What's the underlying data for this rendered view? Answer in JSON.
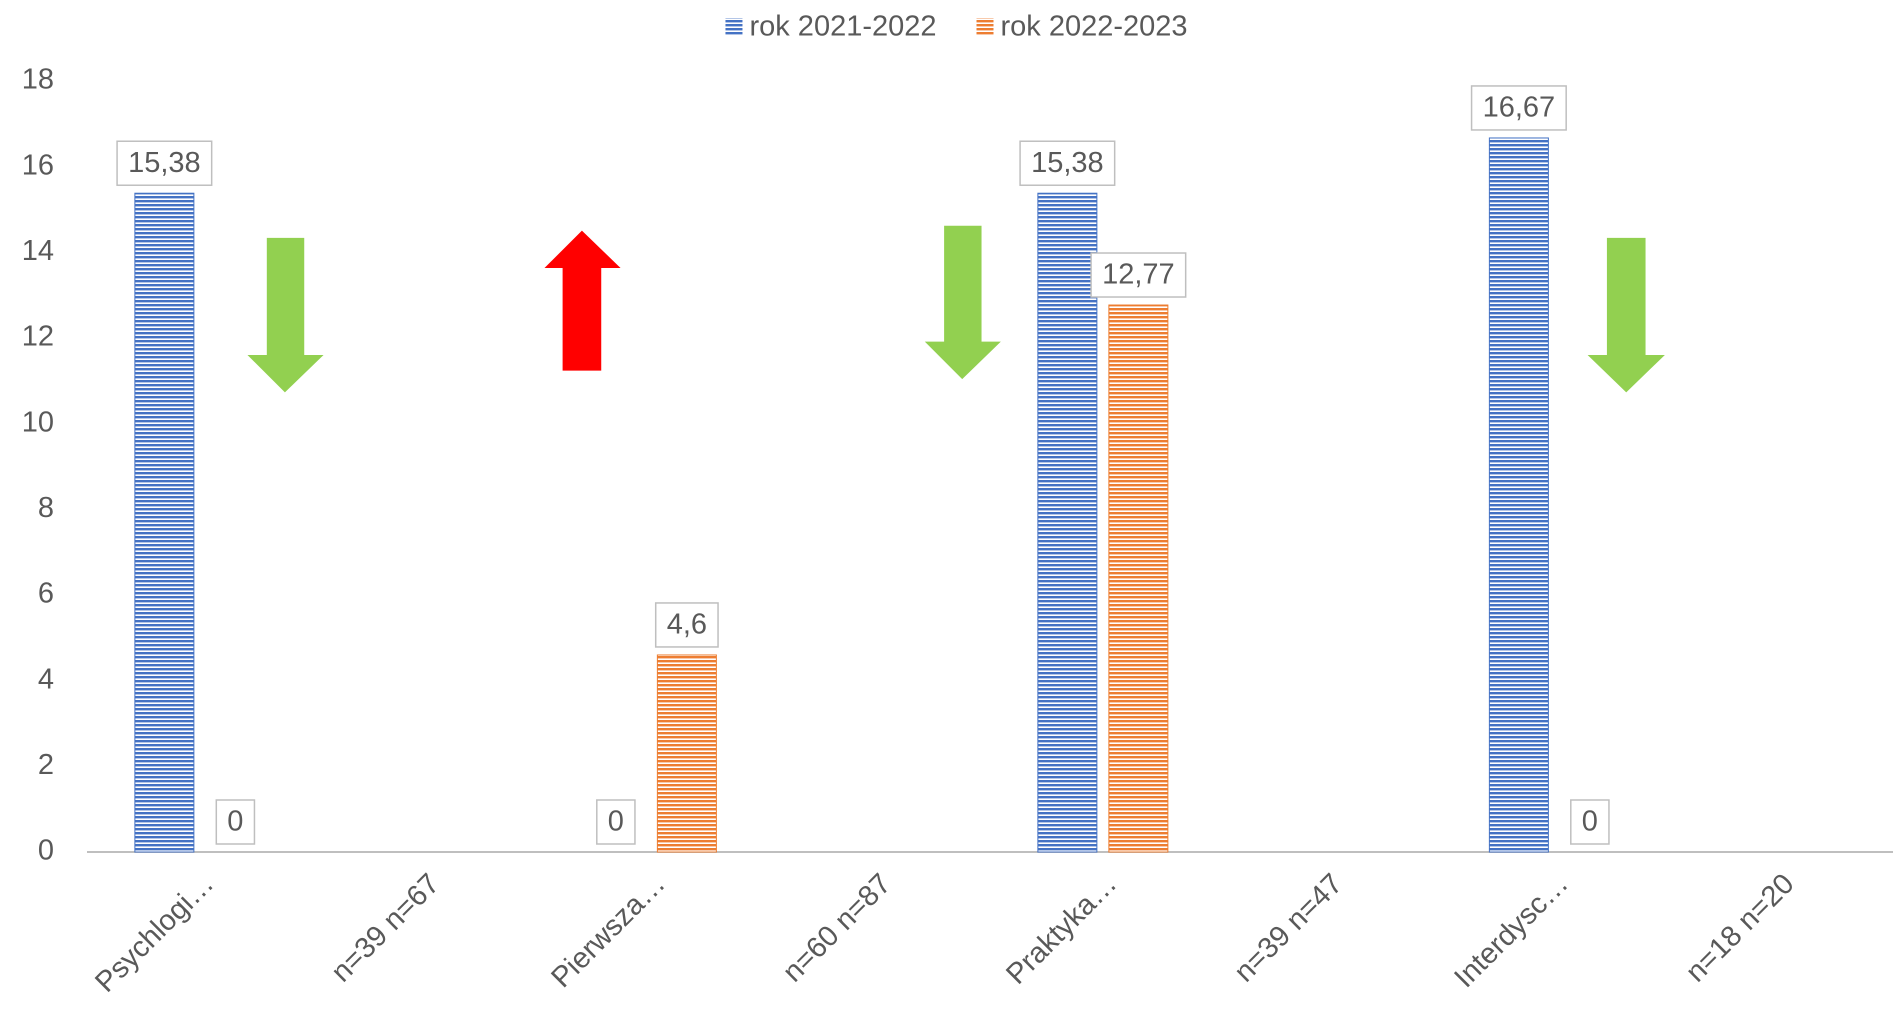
{
  "chart_data": {
    "type": "bar",
    "categories": [
      "Psychlogi…",
      "n=39 n=67",
      "Pierwsza…",
      "n=60 n=87",
      "Praktyka…",
      "n=39 n=47",
      "Interdysc…",
      "n=18 n=20"
    ],
    "series": [
      {
        "name": "rok 2021-2022",
        "color": "#4472c4",
        "values": [
          15.38,
          null,
          0,
          null,
          15.38,
          null,
          16.67,
          null
        ],
        "value_labels": [
          "15,38",
          null,
          "0",
          null,
          "15,38",
          null,
          "16,67",
          null
        ]
      },
      {
        "name": "rok 2022-2023",
        "color": "#ed7d31",
        "values": [
          0,
          null,
          4.6,
          null,
          12.77,
          null,
          0,
          null
        ],
        "value_labels": [
          "0",
          null,
          "4,6",
          null,
          "12,77",
          null,
          "0",
          null
        ]
      }
    ],
    "ylim": [
      0,
      18
    ],
    "yticks": [
      0,
      2,
      4,
      6,
      8,
      10,
      12,
      14,
      16,
      18
    ],
    "grid": false,
    "legend": "top"
  }
}
